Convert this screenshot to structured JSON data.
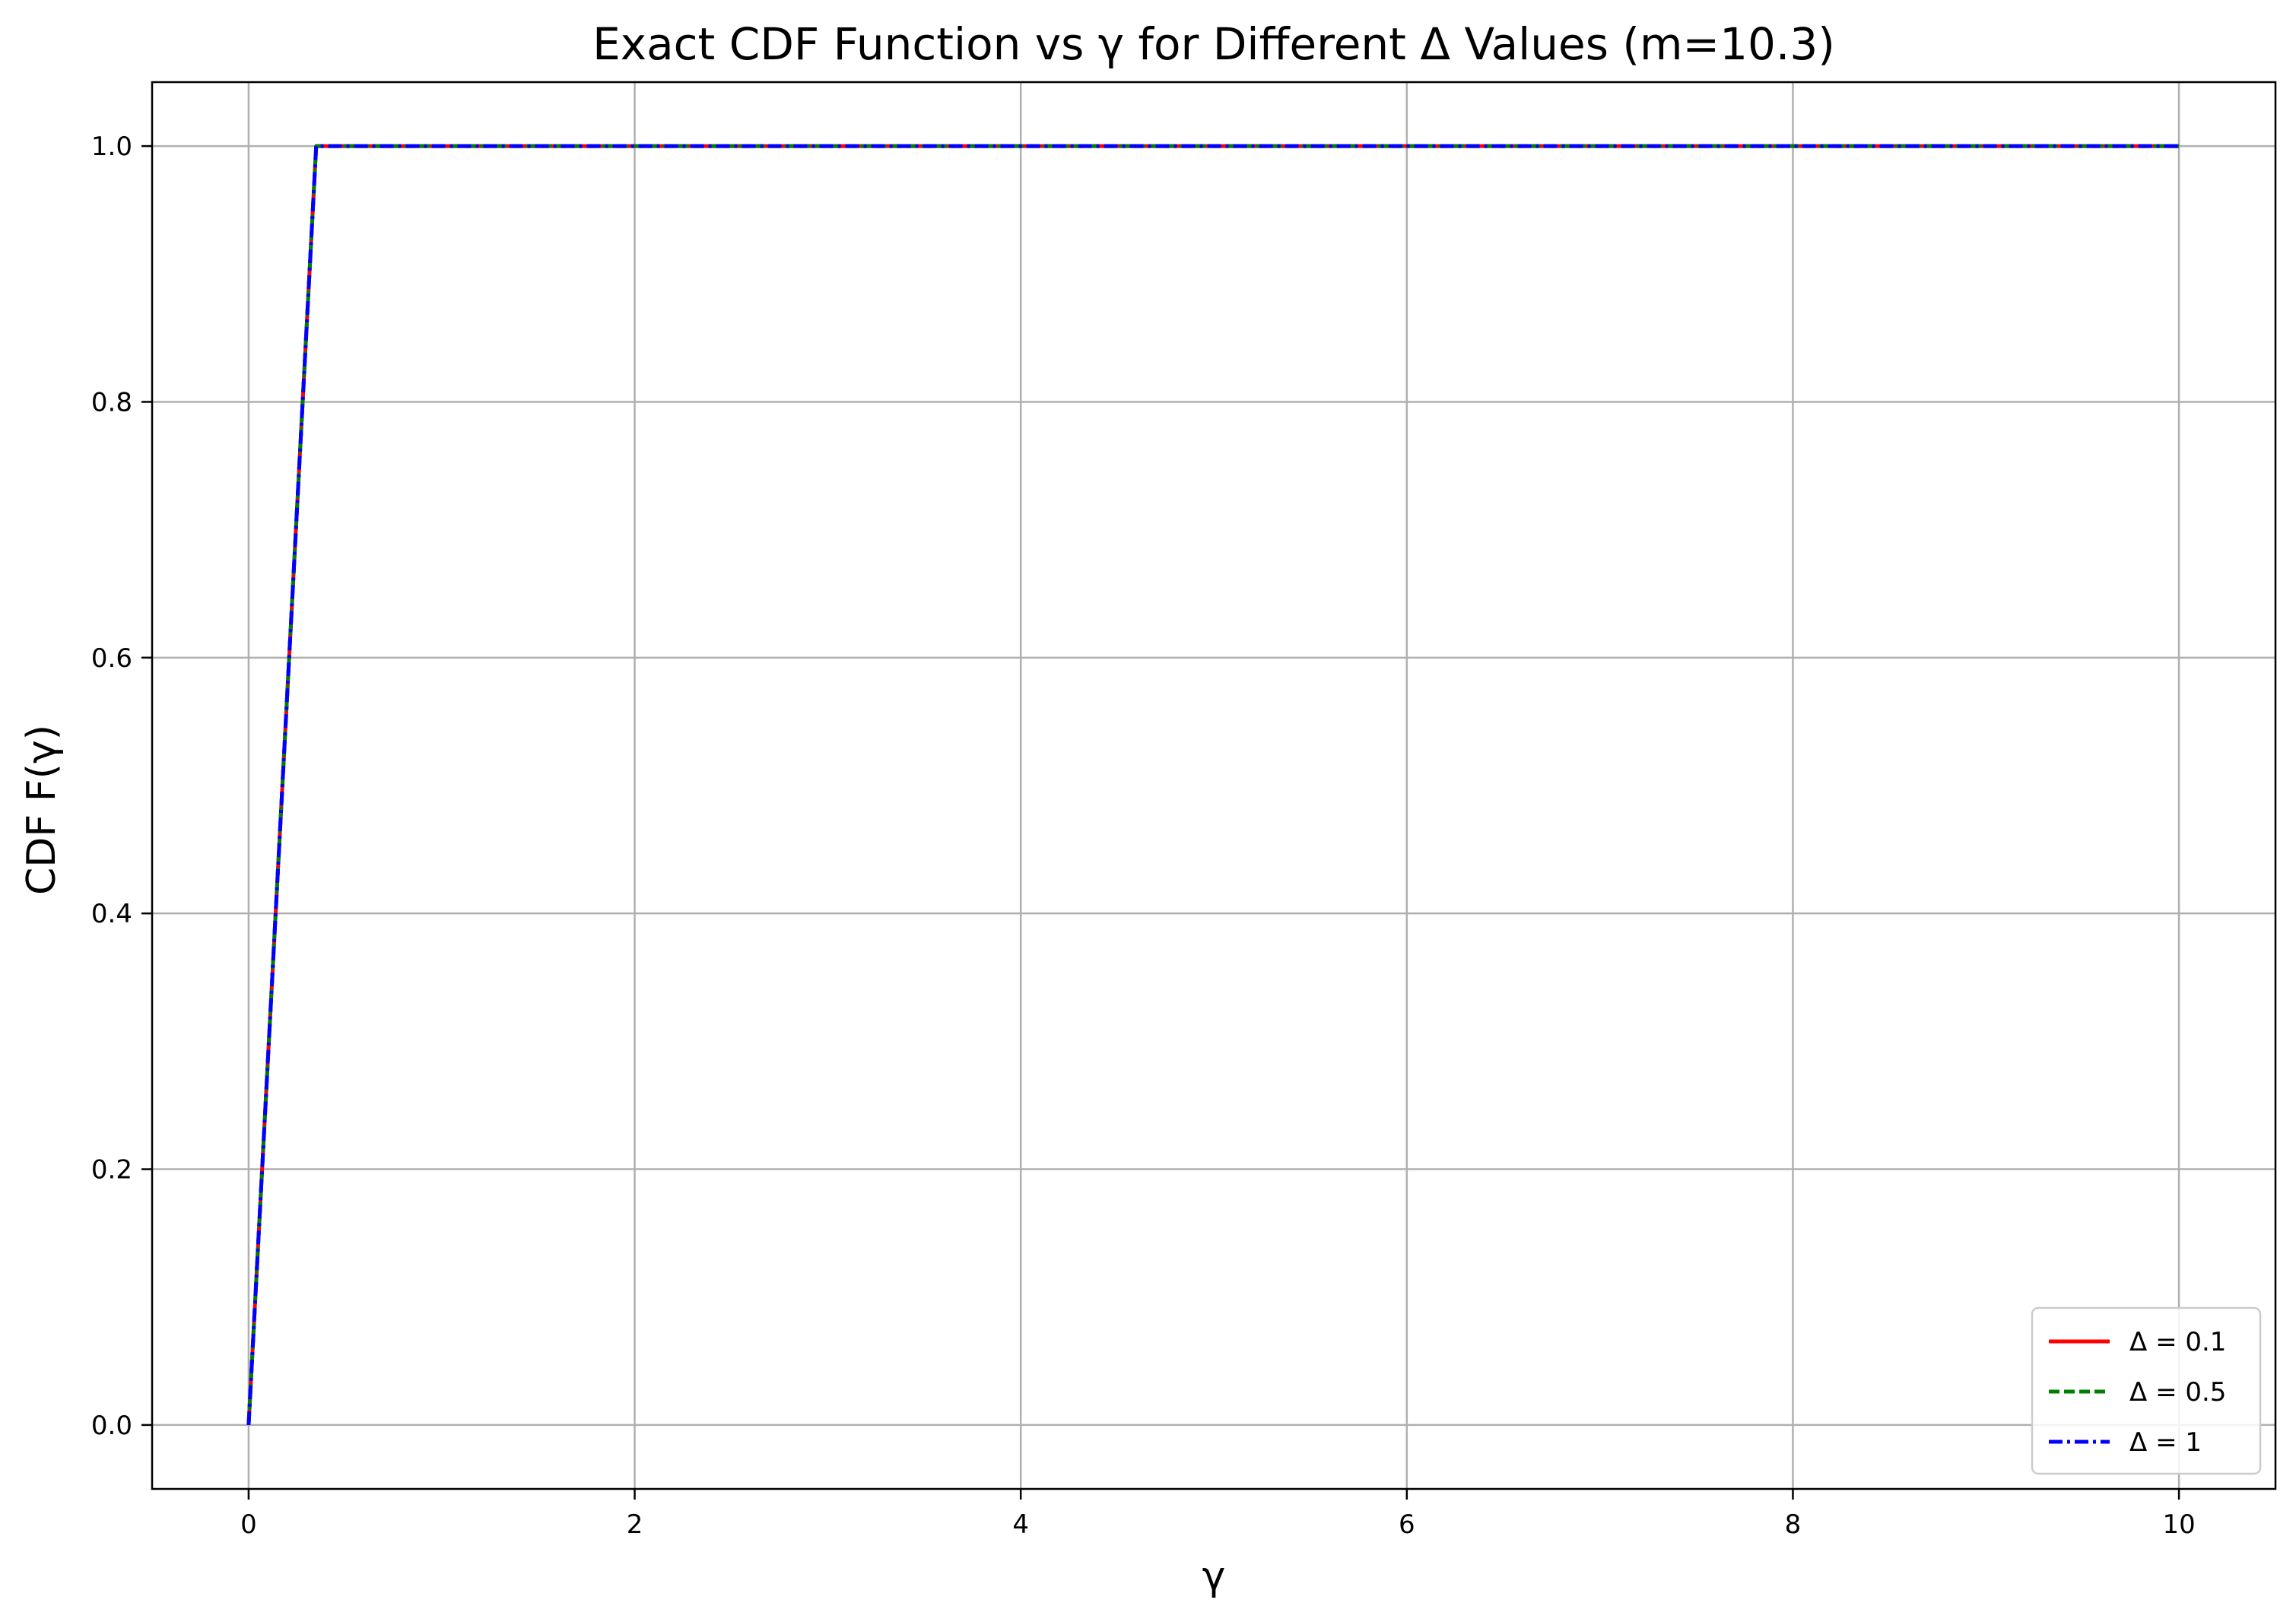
{
  "chart_data": {
    "type": "line",
    "title": "Exact CDF Function vs γ for Different Δ Values (m=10.3)",
    "xlabel": "γ",
    "ylabel": "CDF F(γ)",
    "xlim": [
      -0.5,
      10.5
    ],
    "ylim": [
      -0.05,
      1.05
    ],
    "xticks": [
      0,
      2,
      4,
      6,
      8,
      10
    ],
    "xtick_labels": [
      "0",
      "2",
      "4",
      "6",
      "8",
      "10"
    ],
    "yticks": [
      0.0,
      0.2,
      0.4,
      0.6,
      0.8,
      1.0
    ],
    "ytick_labels": [
      "0.0",
      "0.2",
      "0.4",
      "0.6",
      "0.8",
      "1.0"
    ],
    "grid": true,
    "legend_position": "lower-right",
    "series": [
      {
        "name": "Δ = 0.1",
        "color": "#ff0000",
        "style": "solid",
        "x": [
          0,
          0.35,
          10
        ],
        "y": [
          0.0,
          1.0,
          1.0
        ]
      },
      {
        "name": "Δ = 0.5",
        "color": "#008000",
        "style": "dashed",
        "x": [
          0,
          0.35,
          10
        ],
        "y": [
          0.0,
          1.0,
          1.0
        ]
      },
      {
        "name": "Δ = 1",
        "color": "#0000ff",
        "style": "dashdot",
        "x": [
          0,
          0.35,
          10
        ],
        "y": [
          0.0,
          1.0,
          1.0
        ]
      }
    ]
  }
}
